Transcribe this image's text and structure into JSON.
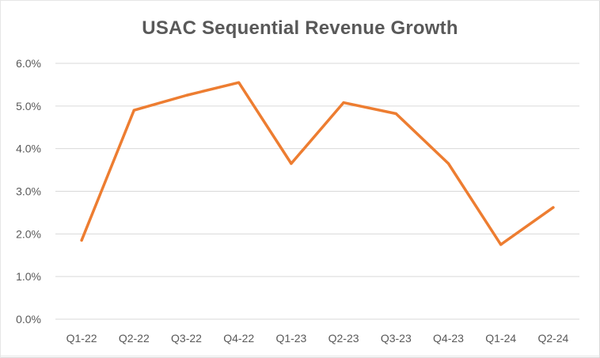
{
  "chart_data": {
    "type": "line",
    "title": "USAC Sequential Revenue Growth",
    "xlabel": "",
    "ylabel": "",
    "categories": [
      "Q1-22",
      "Q2-22",
      "Q3-22",
      "Q4-22",
      "Q1-23",
      "Q2-23",
      "Q3-23",
      "Q4-23",
      "Q1-24",
      "Q2-24"
    ],
    "series": [
      {
        "values": [
          1.85,
          4.9,
          5.25,
          5.55,
          3.65,
          5.08,
          4.82,
          3.65,
          1.75,
          2.62
        ]
      }
    ],
    "ylim": [
      0,
      6
    ],
    "yticks": [
      0,
      1,
      2,
      3,
      4,
      5,
      6
    ],
    "ytick_labels": [
      "0.0%",
      "1.0%",
      "2.0%",
      "3.0%",
      "4.0%",
      "5.0%",
      "6.0%"
    ],
    "grid": true,
    "legend": "none",
    "colors": {
      "line": "#ED7D31",
      "grid": "#d9d9d9",
      "text": "#595959"
    }
  }
}
